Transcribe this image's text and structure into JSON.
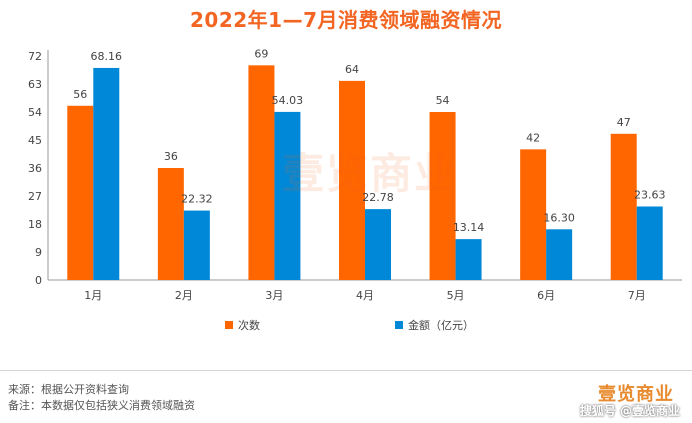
{
  "chart_data": {
    "type": "bar",
    "title": "2022年1—7月消费领域融资情况",
    "categories": [
      "1月",
      "2月",
      "3月",
      "4月",
      "5月",
      "6月",
      "7月"
    ],
    "series": [
      {
        "name": "次数",
        "color": "#ff6600",
        "values": [
          56,
          36,
          69,
          64,
          54,
          42,
          47
        ],
        "labels": [
          "56",
          "36",
          "69",
          "64",
          "54",
          "42",
          "47"
        ]
      },
      {
        "name": "金额（亿元）",
        "color": "#0088d8",
        "values": [
          68.16,
          22.32,
          54.03,
          22.78,
          13.14,
          16.3,
          23.63
        ],
        "labels": [
          "68.16",
          "22.32",
          "54.03",
          "22.78",
          "13.14",
          "16.30",
          "23.63"
        ]
      }
    ],
    "yticks": [
      0,
      9,
      18,
      27,
      36,
      45,
      54,
      63,
      72
    ],
    "ylim": [
      0,
      72
    ],
    "legend_position": "bottom"
  },
  "watermark": "壹览商业",
  "notes": {
    "source": "来源：根据公开资料查询",
    "remark": "备注：本数据仅包括狭义消费领域融资"
  },
  "brand": "壹览商业",
  "footer_mark": "搜狐号 @壹览商业"
}
